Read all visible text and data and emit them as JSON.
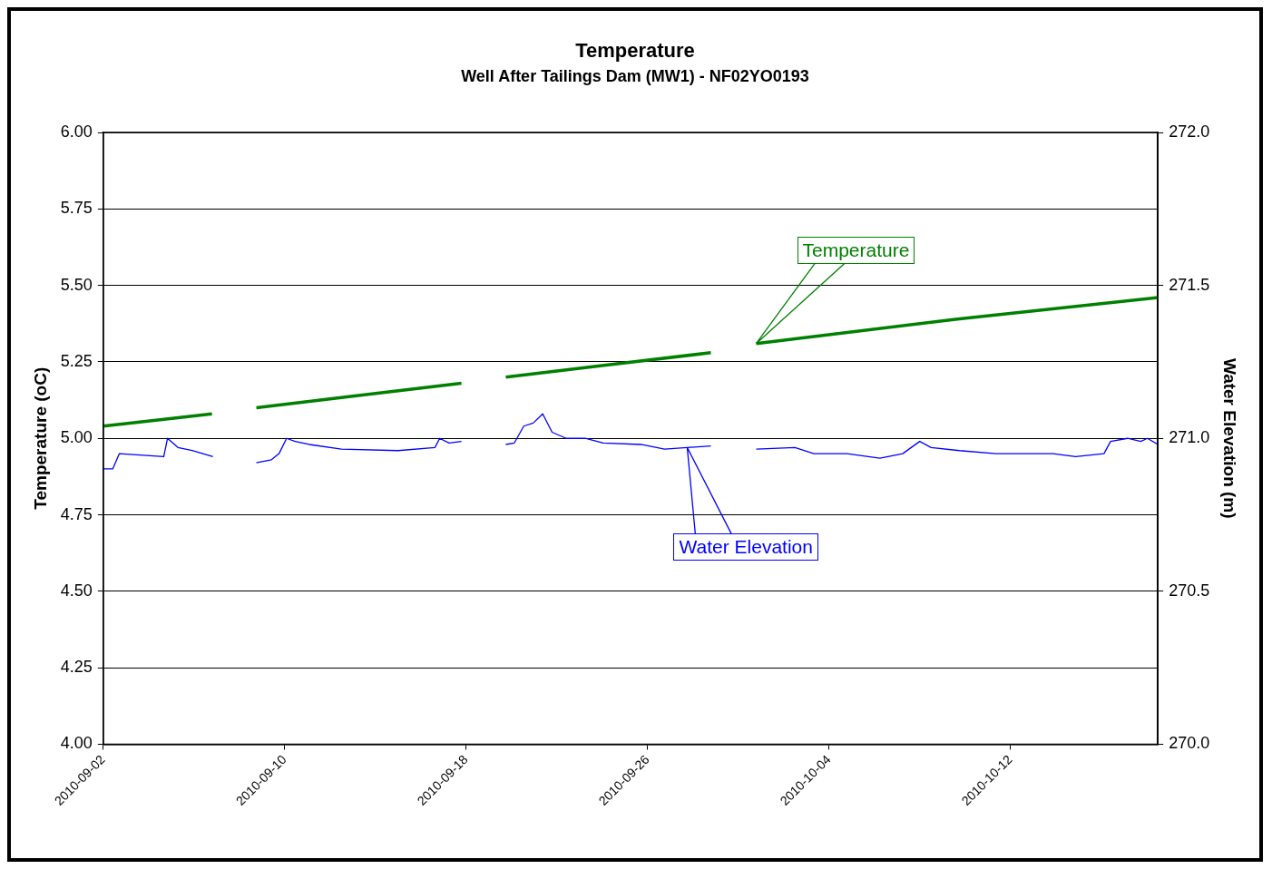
{
  "chart_data": {
    "type": "line",
    "title": "Temperature",
    "subtitle": "Well After Tailings Dam (MW1) - NF02YO0193",
    "ylabel": "Temperature (oC)",
    "y2label": "Water Elevation (m)",
    "xlim": [
      "2010-09-02",
      "2010-10-18T12:00"
    ],
    "xticks": [
      "2010-09-02",
      "2010-09-10",
      "2010-09-18",
      "2010-09-26",
      "2010-10-04",
      "2010-10-12"
    ],
    "ylim": [
      4,
      6
    ],
    "yticks": [
      {
        "value": 4,
        "label": "4.00"
      },
      {
        "value": 4.25,
        "label": "4.25"
      },
      {
        "value": 4.5,
        "label": "4.50"
      },
      {
        "value": 4.75,
        "label": "4.75"
      },
      {
        "value": 5,
        "label": "5.00"
      },
      {
        "value": 5.25,
        "label": "5.25"
      },
      {
        "value": 5.5,
        "label": "5.50"
      },
      {
        "value": 5.75,
        "label": "5.75"
      },
      {
        "value": 6,
        "label": "6.00"
      }
    ],
    "y2lim": [
      270,
      272
    ],
    "y2ticks": [
      {
        "value": 270,
        "label": "270.0"
      },
      {
        "value": 270.5,
        "label": "270.5"
      },
      {
        "value": 271,
        "label": "271.0"
      },
      {
        "value": 271.5,
        "label": "271.5"
      },
      {
        "value": 272,
        "label": "272.0"
      }
    ],
    "grid": "y",
    "legend": false,
    "marker": "none",
    "line_style": "solid",
    "series": [
      {
        "name": "Temperature",
        "color": "#008000",
        "x": [
          "2010-09-02T00:00",
          "2010-09-04T10:00",
          "2010-09-06T19:00",
          "2010-09-07T18:00",
          "2010-09-08T18:00",
          "2010-09-13T06:00",
          "2010-09-17T19:00",
          "2010-09-18T18:00",
          "2010-09-19T18:00",
          "2010-09-24T06:00",
          "2010-09-28T19:00",
          "2010-09-29T18:00",
          "2010-09-30T19:00",
          "2010-10-09T16:00",
          "2010-10-18T12:00"
        ],
        "values": [
          5.04,
          5.06,
          5.08,
          null,
          5.1,
          5.14,
          5.18,
          null,
          5.2,
          5.24,
          5.28,
          null,
          5.31,
          5.39,
          5.46
        ]
      },
      {
        "name": "Water Elevation",
        "color": "#0000ff",
        "axis": "y2",
        "x": [
          "2010-09-02T00:00",
          "2010-09-02T10:00",
          "2010-09-02T17:00",
          "2010-09-04T16:00",
          "2010-09-04T20:00",
          "2010-09-05T07:00",
          "2010-09-05T22:00",
          "2010-09-06T20:00",
          "2010-09-07T18:00",
          "2010-09-08T18:00",
          "2010-09-09T10:00",
          "2010-09-09T18:00",
          "2010-09-10T02:00",
          "2010-09-10T11:00",
          "2010-09-11T02:00",
          "2010-09-12T12:00",
          "2010-09-15T00:00",
          "2010-09-16T15:00",
          "2010-09-16T20:00",
          "2010-09-17T06:00",
          "2010-09-17T19:00",
          "2010-09-18T18:00",
          "2010-09-19T18:00",
          "2010-09-20T03:00",
          "2010-09-20T13:00",
          "2010-09-20T23:00",
          "2010-09-21T09:00",
          "2010-09-21T19:00",
          "2010-09-22T10:00",
          "2010-09-23T06:00",
          "2010-09-24T01:00",
          "2010-09-25T17:00",
          "2010-09-26T18:00",
          "2010-09-27T18:00",
          "2010-09-28T19:00",
          "2010-09-29T18:00",
          "2010-09-30T19:00",
          "2010-10-02T12:00",
          "2010-10-03T08:00",
          "2010-10-04T19:00",
          "2010-10-06T06:00",
          "2010-10-07T06:00",
          "2010-10-08T00:00",
          "2010-10-08T12:00",
          "2010-10-09T18:00",
          "2010-10-11T09:00",
          "2010-10-13T21:00",
          "2010-10-14T21:00",
          "2010-10-16T03:00",
          "2010-10-16T10:00",
          "2010-10-17T04:00",
          "2010-10-17T18:00",
          "2010-10-18T01:00",
          "2010-10-18T12:00"
        ],
        "values": [
          270.9,
          270.9,
          270.95,
          270.94,
          271.0,
          270.97,
          270.96,
          270.94,
          null,
          270.92,
          270.93,
          270.95,
          271.0,
          270.99,
          270.98,
          270.965,
          270.96,
          270.97,
          271.0,
          270.985,
          270.99,
          null,
          270.98,
          270.985,
          271.04,
          271.05,
          271.08,
          271.02,
          271.0,
          271.0,
          270.985,
          270.98,
          270.965,
          270.97,
          270.975,
          null,
          270.965,
          270.97,
          270.95,
          270.95,
          270.935,
          270.95,
          270.99,
          270.97,
          270.96,
          270.95,
          270.95,
          270.94,
          270.95,
          270.99,
          271.0,
          270.99,
          271.0,
          270.98
        ]
      }
    ]
  }
}
